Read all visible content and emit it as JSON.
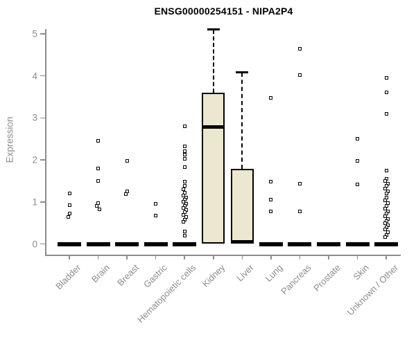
{
  "chart_data": {
    "type": "boxplot",
    "title": "ENSG00000254151 - NIPA2P4",
    "ylabel": "Expression",
    "xlabel": "",
    "ylim": [
      0,
      5.15
    ],
    "yticks": [
      0,
      1,
      2,
      3,
      4,
      5
    ],
    "grid": false,
    "categories": [
      "Bladder",
      "Brain",
      "Breast",
      "Gastric",
      "Hematopoietic cells",
      "Kidney",
      "Liver",
      "Lung",
      "Pancreas",
      "Prostate",
      "Skin",
      "Unknown / Other"
    ],
    "boxes": [
      {
        "category": "Bladder",
        "q1": 0,
        "median": 0,
        "q3": 0,
        "whisker_low": 0,
        "whisker_high": 0
      },
      {
        "category": "Brain",
        "q1": 0,
        "median": 0,
        "q3": 0,
        "whisker_low": 0,
        "whisker_high": 0
      },
      {
        "category": "Breast",
        "q1": 0,
        "median": 0,
        "q3": 0,
        "whisker_low": 0,
        "whisker_high": 0
      },
      {
        "category": "Gastric",
        "q1": 0,
        "median": 0,
        "q3": 0,
        "whisker_low": 0,
        "whisker_high": 0
      },
      {
        "category": "Hematopoietic cells",
        "q1": 0,
        "median": 0,
        "q3": 0,
        "whisker_low": 0,
        "whisker_high": 0
      },
      {
        "category": "Kidney",
        "q1": 0,
        "median": 2.78,
        "q3": 3.6,
        "whisker_low": 0,
        "whisker_high": 5.1
      },
      {
        "category": "Liver",
        "q1": 0,
        "median": 0,
        "q3": 1.78,
        "whisker_low": 0,
        "whisker_high": 4.08
      },
      {
        "category": "Lung",
        "q1": 0,
        "median": 0,
        "q3": 0,
        "whisker_low": 0,
        "whisker_high": 0
      },
      {
        "category": "Pancreas",
        "q1": 0,
        "median": 0,
        "q3": 0,
        "whisker_low": 0,
        "whisker_high": 0
      },
      {
        "category": "Prostate",
        "q1": 0,
        "median": 0,
        "q3": 0,
        "whisker_low": 0,
        "whisker_high": 0
      },
      {
        "category": "Skin",
        "q1": 0,
        "median": 0,
        "q3": 0,
        "whisker_low": 0,
        "whisker_high": 0
      },
      {
        "category": "Unknown / Other",
        "q1": 0,
        "median": 0,
        "q3": 0,
        "whisker_low": 0,
        "whisker_high": 0
      }
    ],
    "outlier_points": [
      {
        "category": "Bladder",
        "values": [
          1.2,
          0.92,
          0.72,
          0.65
        ]
      },
      {
        "category": "Brain",
        "values": [
          2.45,
          1.8,
          1.5,
          0.98,
          0.9,
          0.83
        ]
      },
      {
        "category": "Breast",
        "values": [
          1.97,
          1.25,
          1.18
        ]
      },
      {
        "category": "Gastric",
        "values": [
          0.95,
          0.68
        ]
      },
      {
        "category": "Hematopoietic cells",
        "values": [
          2.8,
          2.33,
          2.2,
          2.12,
          2.03,
          1.83,
          1.48,
          1.38,
          1.3,
          1.22,
          1.15,
          1.1,
          1.05,
          1.0,
          0.95,
          0.9,
          0.85,
          0.8,
          0.75,
          0.7,
          0.65,
          0.58,
          0.52,
          0.3,
          0.2
        ]
      },
      {
        "category": "Kidney",
        "values": []
      },
      {
        "category": "Liver",
        "values": []
      },
      {
        "category": "Lung",
        "values": [
          3.48,
          1.48,
          1.05,
          0.78
        ]
      },
      {
        "category": "Pancreas",
        "values": [
          4.65,
          4.02,
          1.43,
          0.78
        ]
      },
      {
        "category": "Prostate",
        "values": []
      },
      {
        "category": "Skin",
        "values": [
          2.5,
          1.97,
          1.42
        ]
      },
      {
        "category": "Unknown / Other",
        "values": [
          3.95,
          3.6,
          3.1,
          1.75,
          1.55,
          1.5,
          1.44,
          1.38,
          1.32,
          1.26,
          1.2,
          1.1,
          1.03,
          0.97,
          0.9,
          0.84,
          0.78,
          0.72,
          0.66,
          0.6,
          0.55,
          0.5,
          0.45,
          0.4,
          0.34,
          0.28,
          0.22,
          0.17
        ]
      }
    ],
    "colors": {
      "box_fill": "#ece7cf",
      "box_border": "#000000",
      "median": "#000000",
      "point": "#000000",
      "axis": "#8c8c8c",
      "tick_label": "#8c8c8c",
      "title": "#000000",
      "background": "#ffffff"
    }
  }
}
